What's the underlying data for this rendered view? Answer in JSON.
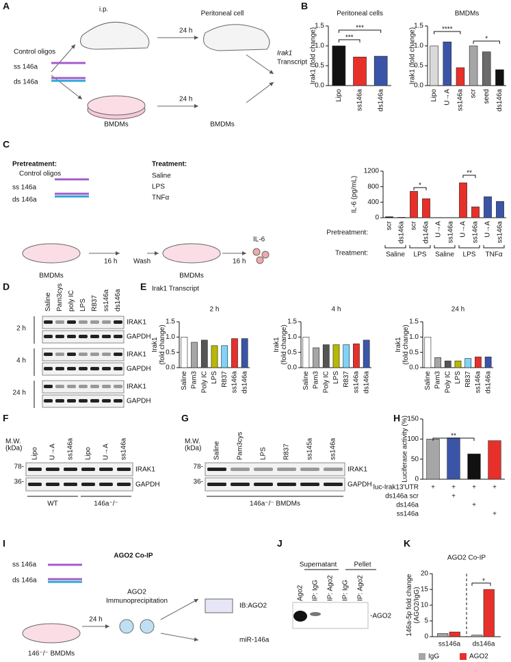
{
  "panel_labels": [
    "A",
    "B",
    "C",
    "D",
    "E",
    "F",
    "G",
    "H",
    "I",
    "J",
    "K"
  ],
  "diagrams": {
    "A": {
      "labels": [
        "Control oligos",
        "ss 146a",
        "ds 146a",
        "i.p.",
        "24 h",
        "Peritoneal cell",
        "24 h",
        "BMDMs",
        "BMDMs",
        "Irak1",
        "Transcript"
      ]
    },
    "C": {
      "labels": [
        "Pretreatment:",
        "Control oligos",
        "ss 146a",
        "ds 146a",
        "Treatment:",
        "Saline",
        "LPS",
        "TNFα",
        "16 h",
        "Wash",
        "16 h",
        "IL-6",
        "BMDMs",
        "BMDMs"
      ]
    },
    "I": {
      "labels": [
        "AGO2 Co-IP",
        "ss 146a",
        "ds 146a",
        "24 h",
        "AGO2",
        "Immunoprecipitation",
        "IB:AGO2",
        "miR-146a",
        "146⁻/⁻ BMDMs"
      ]
    }
  },
  "blots": {
    "D": {
      "lanes": [
        "Saline",
        "Pam3cys",
        "poly IC",
        "LPS",
        "R837",
        "ss146a",
        "ds146a"
      ],
      "rows": [
        {
          "time": "2 h",
          "bands": [
            "IRAK1",
            "GAPDH"
          ]
        },
        {
          "time": "4 h",
          "bands": [
            "IRAK1",
            "GAPDH"
          ]
        },
        {
          "time": "24 h",
          "bands": [
            "IRAK1",
            "GAPDH"
          ]
        }
      ]
    },
    "F": {
      "mw": [
        "M.W.",
        "(kDa)"
      ],
      "markers": [
        "78-",
        "36-"
      ],
      "lanes": [
        "Lipo",
        "U→A",
        "ss146a",
        "Lipo",
        "U→A",
        "ss146a"
      ],
      "bands": [
        "IRAK1",
        "GAPDH"
      ],
      "groups": [
        "WT",
        "146a⁻/⁻"
      ]
    },
    "G": {
      "mw": [
        "M.W.",
        "(kDa)"
      ],
      "markers": [
        "78-",
        "36-"
      ],
      "lanes": [
        "Saline",
        "Pam3cys",
        "LPS",
        "R837",
        "ss145a",
        "ss146a"
      ],
      "bands": [
        "IRAK1",
        "GAPDH"
      ],
      "footer": "146a⁻/⁻ BMDMs"
    },
    "J": {
      "headers": [
        "Supernatant",
        "Pellet"
      ],
      "lanes": [
        "Ago2",
        "IP: IgG",
        "IP: Ago2",
        "IP: IgG",
        "IP: Ago2"
      ],
      "band": "-AGO2"
    }
  },
  "chart_data": [
    {
      "type": "bar",
      "title": "Peritoneal cells",
      "y_label": [
        "Irak1 (fold change)"
      ],
      "categories": [
        "Lipo",
        "ss146a",
        "ds146a"
      ],
      "values": [
        1.0,
        0.72,
        0.74
      ],
      "colors": [
        "#111111",
        "#e8302a",
        "#3a55a8"
      ],
      "ylim": [
        0,
        1.5
      ],
      "yticks": [
        {
          "value": 0,
          "label": "0.0"
        },
        0.5,
        {
          "value": 1,
          "label": "1.0"
        },
        1.5
      ],
      "annotations": [
        "***",
        "***"
      ]
    },
    {
      "type": "bar",
      "title": "BMDMs",
      "y_label": [
        "Irak1 (fold change)"
      ],
      "categories": [
        "Lipo",
        "U→A",
        "ss146a",
        "scr",
        "seed",
        "ds146a"
      ],
      "values": [
        1.0,
        1.1,
        0.45,
        1.0,
        0.85,
        0.4
      ],
      "colors": [
        "#d9d9d9",
        "#3a55a8",
        "#e8302a",
        "#a6a6a6",
        "#6b6b6b",
        "#111111"
      ],
      "ylim": [
        0,
        1.5
      ],
      "yticks": [
        {
          "value": 0,
          "label": "0.0"
        },
        0.5,
        {
          "value": 1,
          "label": "1.0"
        },
        1.5
      ],
      "annotations": [
        "****",
        "*"
      ]
    },
    {
      "type": "bar",
      "y_label": [
        "IL-6 (pg/mL)"
      ],
      "categories": [
        "scr",
        "ds146a",
        "scr",
        "ds146a",
        "U→A",
        "ss146a",
        "U→A",
        "ss146a",
        "U→A",
        "ss146a"
      ],
      "values": [
        25,
        10,
        680,
        490,
        5,
        5,
        900,
        280,
        540,
        420
      ],
      "colors": [
        "#111111",
        "#3a55a8",
        "#e8302a",
        "#e8302a",
        "#a6a6a6",
        "#a6a6a6",
        "#e8302a",
        "#e8302a",
        "#3a55a8",
        "#3a55a8"
      ],
      "ylim": [
        0,
        1200
      ],
      "yticks": [
        0,
        400,
        800,
        1200
      ],
      "annotations": [
        "*",
        "**"
      ],
      "groups": [
        "Saline",
        "LPS",
        "Saline",
        "LPS",
        "TNFα"
      ],
      "row_labels": [
        "Pretreatment:",
        "Treatment:"
      ]
    },
    {
      "type": "bar",
      "subtitle": "Irak1 Transcript",
      "title": "2 h",
      "y_label": [
        "Irak1",
        "(fold change)"
      ],
      "categories": [
        "Saline",
        "Pam3",
        "Poly IC",
        "LPS",
        "R837",
        "ss146a",
        "ds146a"
      ],
      "values": [
        1.0,
        0.83,
        0.9,
        0.72,
        0.72,
        0.95,
        0.95
      ],
      "colors": [
        "#ffffff",
        "#a6a6a6",
        "#555555",
        "#b8b800",
        "#7fd3f7",
        "#e8302a",
        "#3a55a8"
      ],
      "ylim": [
        0,
        1.5
      ],
      "yticks": [
        {
          "value": 0,
          "label": "0.0"
        },
        0.5,
        {
          "value": 1,
          "label": "1.0"
        },
        1.5
      ]
    },
    {
      "type": "bar",
      "title": "4 h",
      "y_label": [
        "Irak1",
        "(fold change)"
      ],
      "categories": [
        "Saline",
        "Pam3",
        "Poly IC",
        "LPS",
        "R837",
        "ss146a",
        "ds146a"
      ],
      "values": [
        1.0,
        0.65,
        0.75,
        0.75,
        0.75,
        0.78,
        0.9
      ],
      "colors": [
        "#ffffff",
        "#a6a6a6",
        "#555555",
        "#b8b800",
        "#7fd3f7",
        "#e8302a",
        "#3a55a8"
      ],
      "ylim": [
        0,
        1.5
      ],
      "yticks": [
        {
          "value": 0,
          "label": "0.0"
        },
        0.5,
        {
          "value": 1,
          "label": "1.0"
        },
        1.5
      ]
    },
    {
      "type": "bar",
      "title": "24 h",
      "y_label": [
        "Irak1",
        "(fold change)"
      ],
      "categories": [
        "Saline",
        "Pam3",
        "Poly IC",
        "LPS",
        "R837",
        "ss146a",
        "ds146a"
      ],
      "values": [
        1.0,
        0.33,
        0.22,
        0.22,
        0.3,
        0.35,
        0.35
      ],
      "colors": [
        "#ffffff",
        "#a6a6a6",
        "#555555",
        "#b8b800",
        "#7fd3f7",
        "#e8302a",
        "#3a55a8"
      ],
      "ylim": [
        0,
        1.5
      ],
      "yticks": [
        {
          "value": 0,
          "label": "0.0"
        },
        0.5,
        {
          "value": 1,
          "label": "1.0"
        },
        1.5
      ]
    },
    {
      "type": "bar",
      "y_label": [
        "Luciferase activity (%)"
      ],
      "values": [
        100,
        103,
        63,
        96
      ],
      "colors": [
        "#a6a6a6",
        "#3a55a8",
        "#111111",
        "#e8302a"
      ],
      "ylim": [
        0,
        150
      ],
      "yticks": [
        0,
        50,
        100,
        150
      ],
      "annotations": [
        "**"
      ],
      "conditions": [
        {
          "label": "luc-Irak13'UTR",
          "signs": [
            "+",
            "+",
            "+",
            "+"
          ]
        },
        {
          "label": "ds146a scr",
          "signs": [
            null,
            "+",
            null,
            null
          ]
        },
        {
          "label": "ds146a",
          "signs": [
            null,
            null,
            "+",
            null
          ]
        },
        {
          "label": "ss146a",
          "signs": [
            null,
            null,
            null,
            "+"
          ]
        }
      ]
    },
    {
      "type": "grouped_bar",
      "title": "AGO2 Co-IP",
      "y_label": [
        "146a-5p fold change",
        "(AGO2/IgG)"
      ],
      "categories": [
        "ss146a",
        "ds146a"
      ],
      "series": [
        {
          "name": "IgG",
          "color": "#a6a6a6",
          "values": [
            1.0,
            0.5
          ]
        },
        {
          "name": "AGO2",
          "color": "#e8302a",
          "values": [
            1.5,
            15
          ]
        }
      ],
      "ylim": [
        0,
        20
      ],
      "yticks": [
        0,
        5,
        10,
        15,
        20
      ],
      "annotations": [
        "*"
      ]
    }
  ]
}
